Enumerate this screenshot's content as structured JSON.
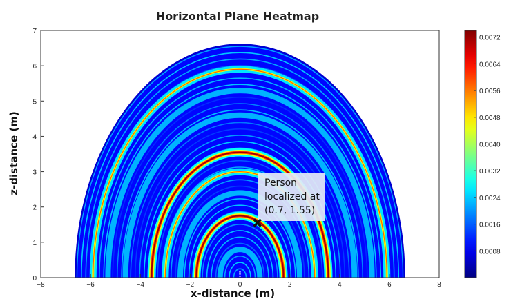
{
  "chart_data": {
    "type": "heatmap",
    "title": "Horizontal Plane Heatmap",
    "xlabel": "x-distance (m)",
    "ylabel": "z-distance (m)",
    "xlim": [
      -8,
      8
    ],
    "ylim": [
      0,
      7
    ],
    "x_ticks": [
      "−8",
      "−6",
      "−4",
      "−2",
      "0",
      "2",
      "4",
      "6",
      "8"
    ],
    "y_ticks": [
      "0",
      "1",
      "2",
      "3",
      "4",
      "5",
      "6",
      "7"
    ],
    "colorbar": {
      "colormap": "jet",
      "range": [
        0,
        0.0074
      ],
      "ticks": [
        "0.0008",
        "0.0016",
        "0.0024",
        "0.0032",
        "0.0040",
        "0.0048",
        "0.0056",
        "0.0064",
        "0.0072"
      ]
    },
    "field": {
      "max_radius": 6.6,
      "ellipse_z_scale": 1.0,
      "bright_rings": [
        1.75,
        3.55
      ],
      "medium_rings": [
        3.0,
        5.9
      ],
      "light_rings": [
        0.8,
        2.4,
        4.6,
        5.3
      ]
    },
    "marker": {
      "x": 0.7,
      "z": 1.55,
      "symbol": "x",
      "color": "#111111"
    },
    "annotation": {
      "lines": [
        "Person",
        "localized at",
        "(0.7, 1.55)"
      ],
      "box_color": "#e3e9f5"
    }
  }
}
